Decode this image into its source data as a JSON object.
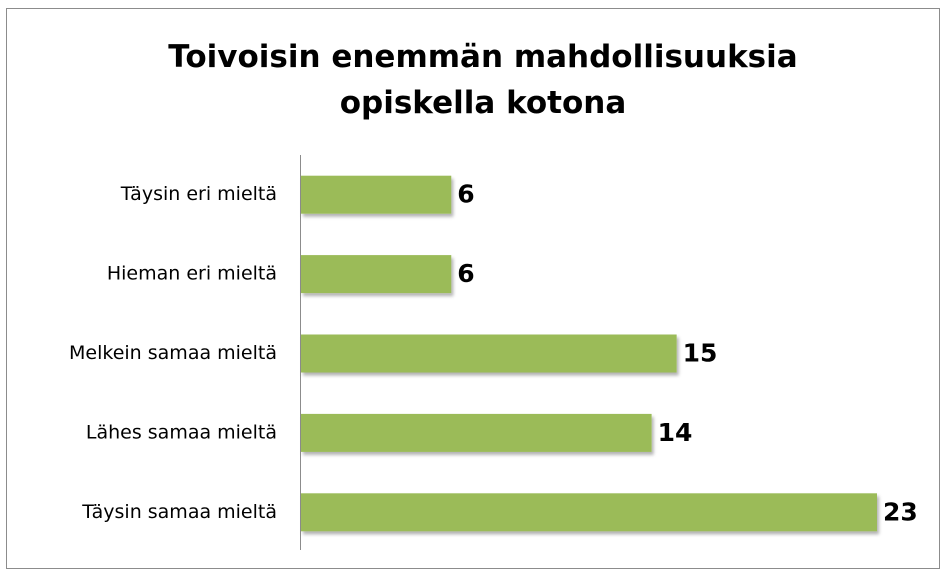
{
  "chart_data": {
    "type": "bar",
    "orientation": "horizontal",
    "title": "Toivoisin enemmän mahdollisuuksia opiskella kotona",
    "categories": [
      "Täysin eri mieltä",
      "Hieman eri mieltä",
      "Melkein samaa mieltä",
      "Lähes samaa mieltä",
      "Täysin samaa mieltä"
    ],
    "values": [
      6,
      6,
      15,
      14,
      23
    ],
    "color": "#9bbb59"
  }
}
